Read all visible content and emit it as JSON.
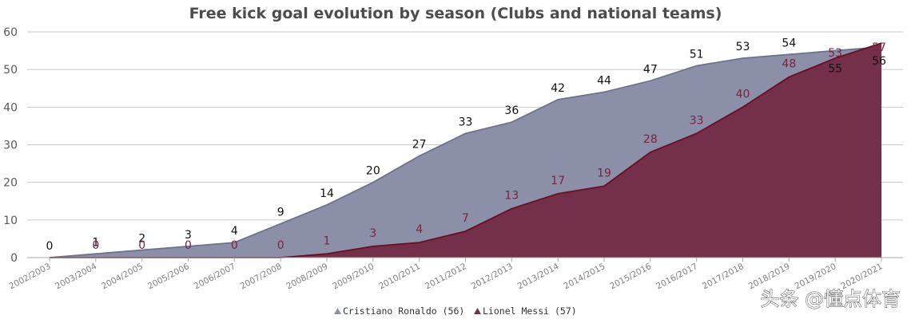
{
  "chart_data": {
    "type": "area",
    "title": "Free kick goal evolution by season (Clubs and national teams)",
    "xlabel": "",
    "ylabel": "",
    "ylim": [
      0,
      60
    ],
    "yticks": [
      0,
      10,
      20,
      30,
      40,
      50,
      60
    ],
    "grid": true,
    "legend_position": "bottom-center",
    "categories": [
      "2002/2003",
      "2003/2004",
      "2004/2005",
      "2005/2006",
      "2006/2007",
      "2007/2008",
      "2008/2009",
      "2009/2010",
      "2010/2011",
      "2011/2012",
      "2012/2013",
      "2013/2014",
      "2014/2015",
      "2015/2016",
      "2016/2017",
      "2017/2018",
      "2018/2019",
      "2019/2020",
      "2020/2021"
    ],
    "series": [
      {
        "name": "Cristiano Ronaldo (56)",
        "values": [
          0,
          1,
          2,
          3,
          4,
          9,
          14,
          20,
          27,
          33,
          36,
          42,
          44,
          47,
          51,
          53,
          54,
          55,
          56
        ],
        "fill_color": "#8b90a8",
        "line_color": "#6d738c",
        "label_color": "#111111"
      },
      {
        "name": "Lionel Messi (57)",
        "values": [
          0,
          0,
          0,
          0,
          0,
          0,
          1,
          3,
          4,
          7,
          13,
          17,
          19,
          28,
          33,
          40,
          48,
          53,
          57
        ],
        "fill_color": "#74304a",
        "line_color": "#6a0e22",
        "label_color": "#7a2240"
      }
    ]
  },
  "watermark": "头条 @懂点体育"
}
